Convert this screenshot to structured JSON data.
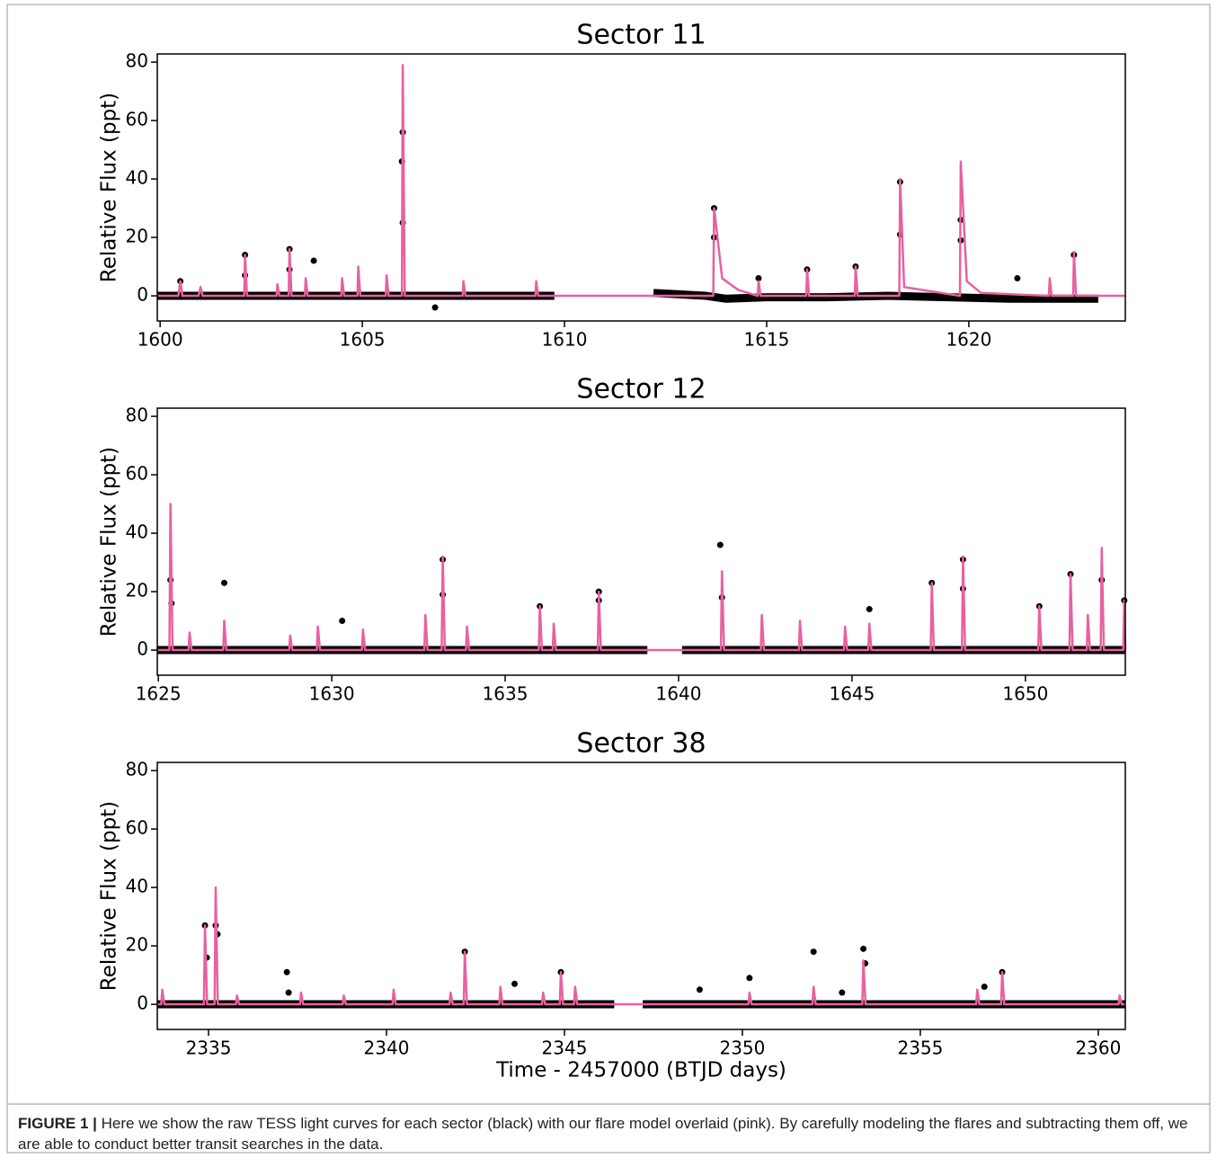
{
  "chart_data": [
    {
      "type": "line",
      "title": "Sector 11",
      "y_label": "Relative Flux (ppt)",
      "xlim": [
        1599.93,
        1623.87
      ],
      "ylim": [
        -8.6,
        82.8
      ],
      "xticks": [
        1600,
        1605,
        1610,
        1615,
        1620
      ],
      "yticks": [
        0,
        20,
        40,
        60,
        80
      ],
      "series": [
        {
          "style": "band",
          "color": "#000000",
          "x": [
            1599.93,
            1601,
            1602.5,
            1604,
            1605.5,
            1607,
            1608.5,
            1609.75,
            1611,
            1612.2,
            1613.5,
            1614,
            1615,
            1616.5,
            1618,
            1619.5,
            1621,
            1622.5,
            1623.2
          ],
          "values": [
            0,
            0,
            0,
            0,
            0,
            0,
            0,
            0,
            null,
            1,
            0,
            -1,
            -0.5,
            -0.5,
            0,
            -0.5,
            -1,
            -1,
            -1
          ]
        },
        {
          "style": "dots",
          "color": "#000000",
          "x": [
            1600.5,
            1602.1,
            1602.1,
            1603.2,
            1603.2,
            1603.8,
            1605.98,
            1606,
            1606,
            1606.8,
            1613.7,
            1613.7,
            1614.8,
            1616,
            1617.2,
            1618.3,
            1618.3,
            1619.8,
            1619.8,
            1621.2,
            1622.6
          ],
          "values": [
            5,
            14,
            7,
            16,
            9,
            12,
            46,
            56,
            25,
            -4,
            30,
            20,
            6,
            9,
            10,
            39,
            21,
            26,
            19,
            6,
            14
          ]
        },
        {
          "style": "line",
          "color": "#e8609f",
          "x": [
            1599.93,
            1600.45,
            1600.5,
            1600.55,
            1600.95,
            1601,
            1601.05,
            1602.08,
            1602.1,
            1602.15,
            1602.88,
            1602.9,
            1602.95,
            1603.18,
            1603.2,
            1603.25,
            1603.58,
            1603.6,
            1603.65,
            1604.48,
            1604.5,
            1604.55,
            1604.88,
            1604.9,
            1604.95,
            1605.58,
            1605.6,
            1605.65,
            1605.98,
            1606,
            1606.05,
            1607.48,
            1607.5,
            1607.55,
            1609.28,
            1609.3,
            1609.35,
            1613.68,
            1613.7,
            1613.9,
            1614.3,
            1614.78,
            1614.8,
            1614.85,
            1615.98,
            1616,
            1616.05,
            1617.18,
            1617.2,
            1617.25,
            1618.28,
            1618.3,
            1618.4,
            1619.78,
            1619.8,
            1619.95,
            1620.3,
            1621.98,
            1622,
            1622.05,
            1622.58,
            1622.6,
            1622.65,
            1623.87
          ],
          "values": [
            0,
            0,
            5,
            0,
            0,
            3,
            0,
            0,
            14,
            0,
            0,
            4,
            0,
            0,
            16,
            0,
            0,
            6,
            0,
            0,
            6,
            0,
            0,
            10,
            0,
            0,
            7,
            0,
            0,
            79,
            0,
            0,
            5,
            0,
            0,
            5,
            0,
            0,
            30,
            6,
            2,
            0,
            5,
            0,
            0,
            9,
            0,
            0,
            10,
            0,
            0,
            40,
            3,
            0,
            46,
            5,
            1,
            0,
            6,
            0,
            0,
            15,
            0,
            0
          ]
        }
      ]
    },
    {
      "type": "line",
      "title": "Sector 12",
      "y_label": "Relative Flux (ppt)",
      "xlim": [
        1624.97,
        1652.88
      ],
      "ylim": [
        -8.6,
        82.8
      ],
      "xticks": [
        1625,
        1630,
        1635,
        1640,
        1645,
        1650
      ],
      "yticks": [
        0,
        20,
        40,
        60,
        80
      ],
      "series": [
        {
          "style": "band",
          "color": "#000000",
          "x": [
            1624.97,
            1627,
            1630,
            1633,
            1636,
            1639.1,
            1639.6,
            1640.1,
            1641,
            1644,
            1647,
            1650,
            1652.88
          ],
          "values": [
            0,
            0,
            0,
            0,
            0,
            0,
            null,
            0,
            0,
            0,
            0,
            0,
            0
          ]
        },
        {
          "style": "dots",
          "color": "#000000",
          "x": [
            1625.35,
            1625.38,
            1626.9,
            1630.3,
            1633.2,
            1633.2,
            1636,
            1637.7,
            1637.7,
            1641.2,
            1641.25,
            1645.5,
            1647.3,
            1648.2,
            1648.2,
            1650.4,
            1651.3,
            1652.2,
            1652.85
          ],
          "values": [
            24,
            16,
            23,
            10,
            31,
            19,
            15,
            20,
            17,
            36,
            18,
            14,
            23,
            31,
            21,
            15,
            26,
            24,
            17
          ]
        },
        {
          "style": "line",
          "color": "#e8609f",
          "x": [
            1624.97,
            1625.32,
            1625.35,
            1625.41,
            1625.87,
            1625.9,
            1625.96,
            1626.87,
            1626.9,
            1626.96,
            1628.77,
            1628.8,
            1628.86,
            1629.57,
            1629.6,
            1629.66,
            1630.87,
            1630.9,
            1630.96,
            1632.67,
            1632.7,
            1632.76,
            1633.17,
            1633.2,
            1633.26,
            1633.87,
            1633.9,
            1633.96,
            1635.97,
            1636,
            1636.06,
            1636.37,
            1636.4,
            1636.46,
            1637.67,
            1637.7,
            1637.76,
            1641.22,
            1641.25,
            1641.31,
            1642.37,
            1642.4,
            1642.46,
            1643.47,
            1643.5,
            1643.56,
            1644.77,
            1644.8,
            1644.86,
            1645.47,
            1645.5,
            1645.56,
            1647.27,
            1647.3,
            1647.36,
            1648.17,
            1648.2,
            1648.26,
            1650.37,
            1650.4,
            1650.46,
            1651.27,
            1651.3,
            1651.36,
            1651.77,
            1651.8,
            1651.86,
            1652.17,
            1652.2,
            1652.26,
            1652.82,
            1652.85,
            1652.88
          ],
          "values": [
            0,
            0,
            50,
            0,
            0,
            6,
            0,
            0,
            10,
            0,
            0,
            5,
            0,
            0,
            8,
            0,
            0,
            7,
            0,
            0,
            12,
            0,
            0,
            32,
            0,
            0,
            8,
            0,
            0,
            15,
            0,
            0,
            9,
            0,
            0,
            20,
            0,
            0,
            27,
            0,
            0,
            12,
            0,
            0,
            10,
            0,
            0,
            8,
            0,
            0,
            9,
            0,
            0,
            23,
            0,
            0,
            32,
            0,
            0,
            15,
            0,
            0,
            26,
            0,
            0,
            12,
            0,
            0,
            35,
            0,
            0,
            17,
            0
          ]
        }
      ]
    },
    {
      "type": "line",
      "title": "Sector 38",
      "y_label": "Relative Flux (ppt)",
      "x_label": "Time - 2457000 (BTJD days)",
      "xlim": [
        2333.56,
        2360.76
      ],
      "ylim": [
        -8.6,
        82.8
      ],
      "xticks": [
        2335,
        2340,
        2345,
        2350,
        2355,
        2360
      ],
      "yticks": [
        0,
        20,
        40,
        60,
        80
      ],
      "series": [
        {
          "style": "band",
          "color": "#000000",
          "x": [
            2333.56,
            2336,
            2339,
            2342,
            2345,
            2346.4,
            2346.8,
            2347.2,
            2350,
            2353,
            2356,
            2359,
            2360.76
          ],
          "values": [
            0,
            0,
            0,
            0,
            0,
            0,
            null,
            0,
            0,
            0,
            0,
            0,
            0
          ]
        },
        {
          "style": "dots",
          "color": "#000000",
          "x": [
            2334.9,
            2334.95,
            2335.2,
            2335.25,
            2337.2,
            2337.25,
            2342.2,
            2343.6,
            2344.9,
            2348.8,
            2350.2,
            2352,
            2352.8,
            2353.4,
            2353.45,
            2356.8,
            2357.3
          ],
          "values": [
            27,
            16,
            27,
            24,
            11,
            4,
            18,
            7,
            11,
            5,
            9,
            18,
            4,
            19,
            14,
            6,
            11
          ]
        },
        {
          "style": "line",
          "color": "#e8609f",
          "x": [
            2333.56,
            2333.67,
            2333.7,
            2333.76,
            2334.87,
            2334.9,
            2334.96,
            2335.17,
            2335.2,
            2335.26,
            2335.77,
            2335.8,
            2335.86,
            2337.57,
            2337.6,
            2337.66,
            2338.77,
            2338.8,
            2338.86,
            2340.17,
            2340.2,
            2340.26,
            2341.77,
            2341.8,
            2341.86,
            2342.17,
            2342.2,
            2342.26,
            2343.17,
            2343.2,
            2343.26,
            2344.37,
            2344.4,
            2344.46,
            2344.87,
            2344.9,
            2344.96,
            2345.27,
            2345.3,
            2345.36,
            2350.17,
            2350.2,
            2350.26,
            2351.97,
            2352,
            2352.06,
            2353.37,
            2353.4,
            2353.46,
            2356.57,
            2356.6,
            2356.66,
            2357.27,
            2357.3,
            2357.36,
            2360.57,
            2360.6,
            2360.66,
            2360.76
          ],
          "values": [
            0,
            0,
            5,
            0,
            0,
            27,
            0,
            0,
            40,
            0,
            0,
            3,
            0,
            0,
            4,
            0,
            0,
            3,
            0,
            0,
            5,
            0,
            0,
            4,
            0,
            0,
            18,
            0,
            0,
            6,
            0,
            0,
            4,
            0,
            0,
            11,
            0,
            0,
            6,
            0,
            0,
            4,
            0,
            0,
            6,
            0,
            0,
            15,
            0,
            0,
            5,
            0,
            0,
            11,
            0,
            0,
            3,
            0,
            0
          ]
        }
      ]
    }
  ],
  "caption": {
    "label": "FIGURE 1 |",
    "text": "Here we show the raw TESS light curves for each sector (black) with our flare model overlaid (pink). By carefully modeling the flares and subtracting them off, we are able to conduct better transit searches in the data."
  }
}
